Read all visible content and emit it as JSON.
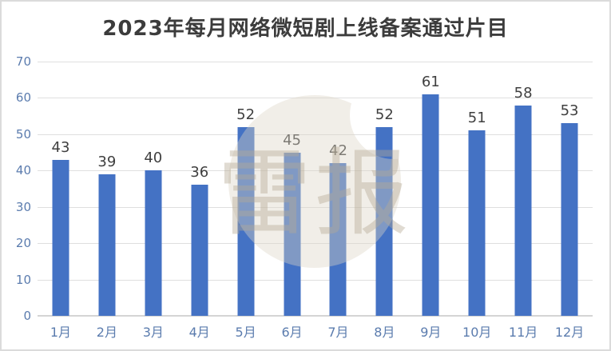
{
  "title": "2023年每月网络微短剧上线备案通过片目",
  "watermark": {
    "text": "雷报"
  },
  "chart_data": {
    "type": "bar",
    "title": "2023年每月网络微短剧上线备案通过片目",
    "categories": [
      "1月",
      "2月",
      "3月",
      "4月",
      "5月",
      "6月",
      "7月",
      "8月",
      "9月",
      "10月",
      "11月",
      "12月"
    ],
    "values": [
      43,
      39,
      40,
      36,
      52,
      45,
      42,
      52,
      61,
      51,
      58,
      53
    ],
    "xlabel": "",
    "ylabel": "",
    "ylim": [
      0,
      70
    ],
    "yticks": [
      0,
      10,
      20,
      30,
      40,
      50,
      60,
      70
    ],
    "grid": true,
    "legend_position": "none",
    "bar_color": "#4472C4",
    "value_label_color": "#3F3F3F",
    "axis_tick_color": "#5B7CAE",
    "gridline_color": "#DFDFDF"
  }
}
